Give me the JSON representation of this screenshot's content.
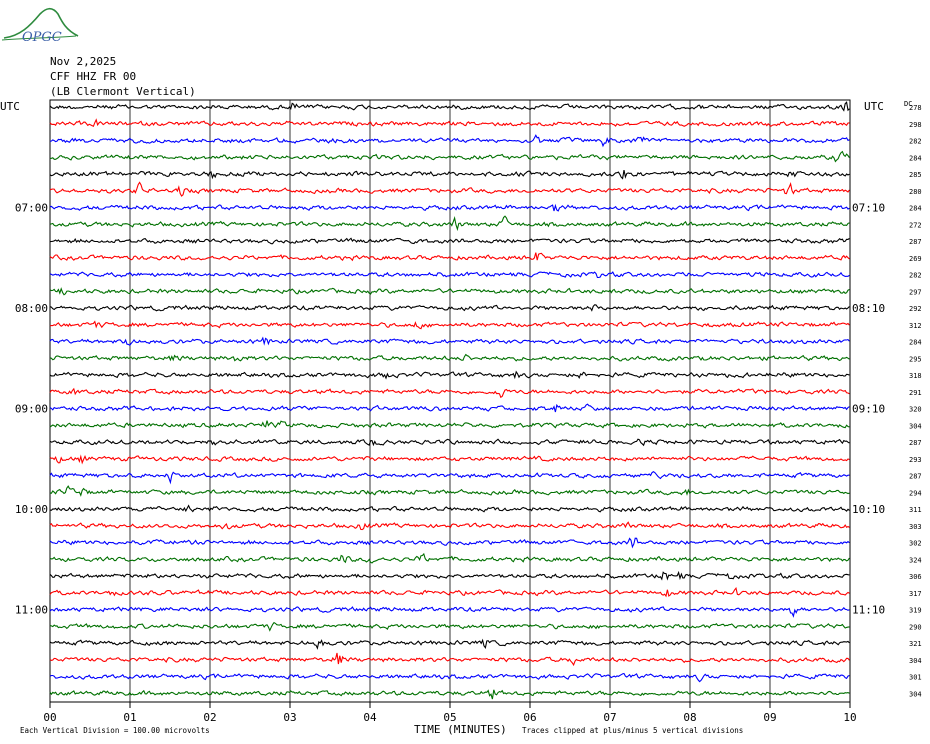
{
  "logo_text": "OPGC",
  "header": {
    "date": "Nov 2,2025",
    "station": "CFF HHZ FR 00",
    "location": "(LB  Clermont Vertical)"
  },
  "axis": {
    "left_label": "UTC",
    "right_label": "UTC",
    "dc_label": "DC",
    "xlabel": "TIME (MINUTES)",
    "footer_left": "Each Vertical Division =  100.00 microvolts",
    "footer_right": "Traces clipped at plus/minus 5 vertical divisions"
  },
  "colors": {
    "trace_cycle": [
      "#000000",
      "#ff0000",
      "#0000ff",
      "#007000"
    ],
    "grid": "#000000"
  },
  "chart_data": {
    "type": "line",
    "xlim": [
      0,
      10
    ],
    "x_ticks": [
      "00",
      "01",
      "02",
      "03",
      "04",
      "05",
      "06",
      "07",
      "08",
      "09",
      "10"
    ],
    "left_hour_labels": [
      "07:00",
      "08:00",
      "09:00",
      "10:00",
      "11:00"
    ],
    "right_hour_labels": [
      "07:10",
      "08:10",
      "09:10",
      "10:10",
      "11:10"
    ],
    "dc_offsets": [
      278,
      298,
      282,
      284,
      285,
      280,
      284,
      272,
      287,
      269,
      282,
      297,
      292,
      312,
      284,
      295,
      318,
      291,
      320,
      304,
      287,
      293,
      287,
      294,
      311,
      303,
      302,
      324,
      306,
      317,
      319,
      290,
      321,
      304,
      301,
      304
    ]
  }
}
